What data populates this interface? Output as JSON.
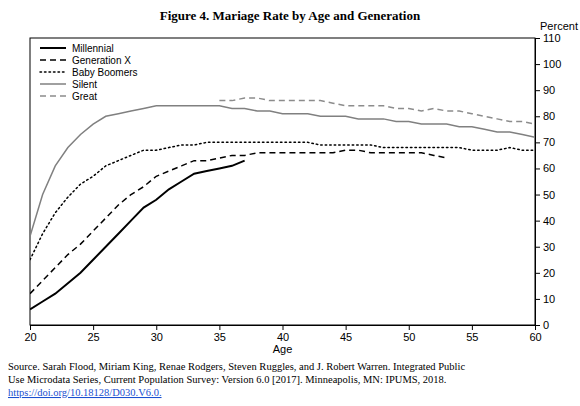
{
  "chart_data": {
    "type": "line",
    "title": "Figure 4. Mariage Rate by Age and Generation",
    "x_label": "Age",
    "y_label": "Percent",
    "source": [
      "Source. Sarah Flood, Miriam King, Renae Rodgers, Steven Ruggles, and J. Robert Warren. Integrated Public",
      "Use Microdata Series, Current Population Survey: Version 6.0 [2017]. Minneapolis, MN: IPUMS, 2018.",
      "https://doi.org/10.18128/D030.V6.0."
    ],
    "x": [
      20,
      21,
      22,
      23,
      24,
      25,
      26,
      27,
      28,
      29,
      30,
      31,
      32,
      33,
      34,
      35,
      36,
      37,
      38,
      39,
      40,
      41,
      42,
      43,
      44,
      45,
      46,
      47,
      48,
      49,
      50,
      51,
      52,
      53,
      54,
      55,
      56,
      57,
      58,
      59,
      60
    ],
    "xlim": [
      20,
      60
    ],
    "xticks": [
      20,
      25,
      30,
      35,
      40,
      45,
      50,
      55,
      60
    ],
    "ylim": [
      0,
      110
    ],
    "yticks": [
      0,
      10,
      20,
      30,
      40,
      50,
      60,
      70,
      80,
      90,
      100,
      110
    ],
    "legend": "top-left",
    "series": [
      {
        "name": "Millennial",
        "color": "#000000",
        "line_style": "solid",
        "values": [
          6,
          9,
          12,
          16,
          20,
          25,
          30,
          35,
          40,
          45,
          48,
          52,
          55,
          58,
          59,
          60,
          61,
          63,
          null,
          null,
          null,
          null,
          null,
          null,
          null,
          null,
          null,
          null,
          null,
          null,
          null,
          null,
          null,
          null,
          null,
          null,
          null,
          null,
          null,
          null,
          null
        ]
      },
      {
        "name": "Generation X",
        "color": "#000000",
        "line_style": "dashed",
        "values": [
          12,
          17,
          22,
          27,
          31,
          36,
          41,
          46,
          50,
          53,
          57,
          59,
          61,
          63,
          63,
          64,
          65,
          65,
          66,
          66,
          66,
          66,
          66,
          66,
          66,
          67,
          67,
          66,
          66,
          66,
          66,
          66,
          65,
          64,
          null,
          null,
          null,
          null,
          null,
          null,
          null
        ]
      },
      {
        "name": "Baby Boomers",
        "color": "#000000",
        "line_style": "dotted",
        "values": [
          25,
          35,
          43,
          49,
          54,
          57,
          61,
          63,
          65,
          67,
          67,
          68,
          69,
          69,
          70,
          70,
          70,
          70,
          70,
          70,
          70,
          70,
          70,
          69,
          69,
          69,
          69,
          69,
          68,
          68,
          68,
          68,
          68,
          68,
          68,
          67,
          67,
          67,
          68,
          67,
          67
        ]
      },
      {
        "name": "Silent",
        "color": "#808080",
        "line_style": "solid",
        "values": [
          34,
          50,
          61,
          68,
          73,
          77,
          80,
          81,
          82,
          83,
          84,
          84,
          84,
          84,
          84,
          84,
          83,
          83,
          82,
          82,
          81,
          81,
          81,
          80,
          80,
          80,
          79,
          79,
          79,
          78,
          78,
          77,
          77,
          77,
          76,
          76,
          75,
          74,
          74,
          73,
          72
        ]
      },
      {
        "name": "Great",
        "color": "#8c8c8c",
        "line_style": "dashed",
        "values": [
          null,
          null,
          null,
          null,
          null,
          null,
          null,
          null,
          null,
          null,
          null,
          null,
          null,
          null,
          null,
          86,
          86,
          87,
          87,
          86,
          86,
          86,
          86,
          86,
          85,
          84,
          84,
          84,
          84,
          83,
          83,
          82,
          83,
          82,
          82,
          81,
          80,
          79,
          78,
          78,
          77
        ]
      }
    ]
  }
}
